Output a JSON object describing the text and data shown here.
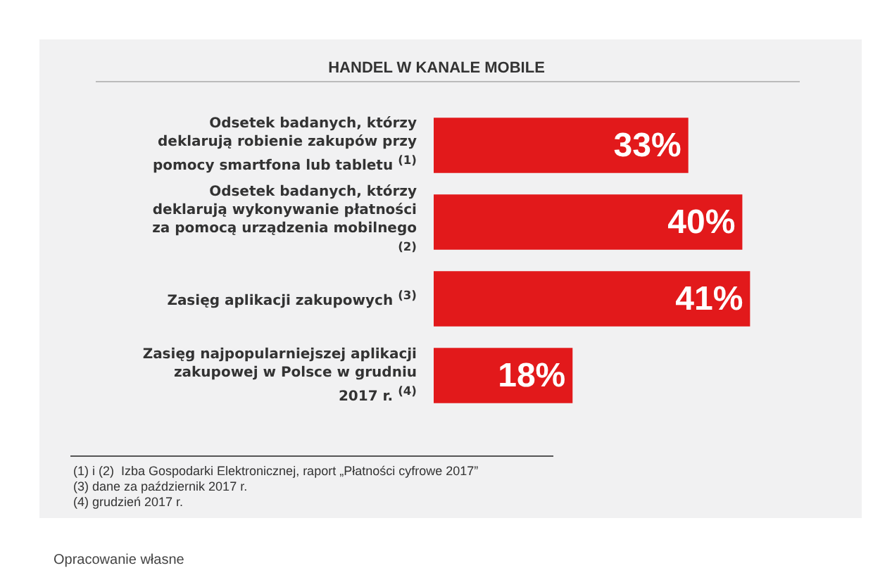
{
  "chart_data": {
    "type": "bar",
    "orientation": "horizontal",
    "title": "HANDEL W KANALE MOBILE",
    "categories": [
      "Odsetek badanych, którzy deklarują robienie zakupów przy pomocy smartfona lub tabletu $^{(1)}$",
      "Odsetek badanych, którzy deklarują wykonywanie płatności za pomocą urządzenia mobilnego $^{(2)}$",
      "Zasięg aplikacji zakupowych $^{(3)}$",
      "Zasięg najpopularniejszej aplikacji zakupowej w Polsce w grudniu 2017 r. $^{(4)}$"
    ],
    "values": [
      33,
      40,
      41,
      18
    ],
    "value_labels": [
      "33%",
      "40%",
      "41%",
      "18%"
    ],
    "color": "#e2191b",
    "annotations": [
      "(1) i (2)  Izba Gospodarki Elektronicznej, raport „Płatności cyfrowe 2017”",
      "(3) dane za październik 2017 r.",
      "(4) grudzień 2017 r.",
      "Opracowanie własne"
    ]
  }
}
